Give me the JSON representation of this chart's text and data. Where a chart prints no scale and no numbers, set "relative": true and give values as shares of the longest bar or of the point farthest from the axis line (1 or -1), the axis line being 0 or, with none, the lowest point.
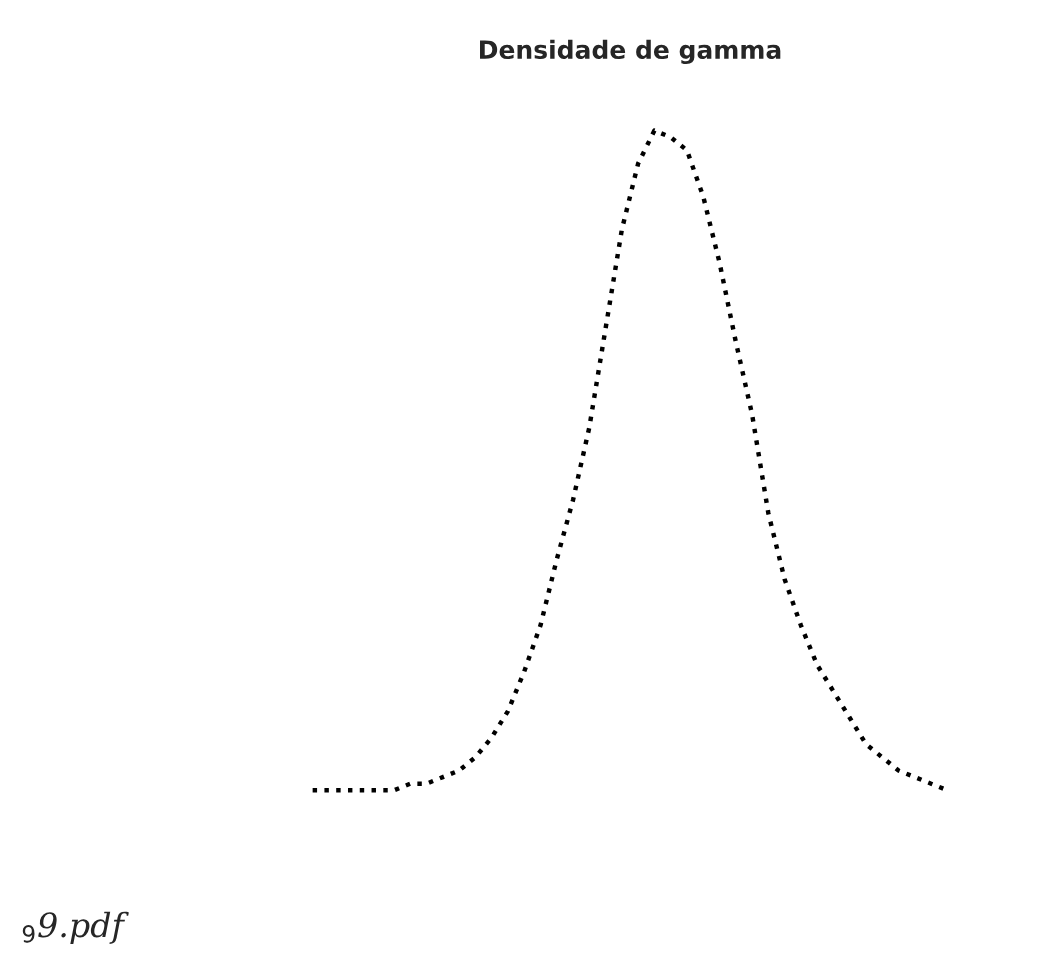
{
  "chart_data": {
    "type": "line",
    "title": "Densidade de gamma",
    "relative": true,
    "line_style": "dotted",
    "marker": "none",
    "grid": false,
    "categories": [
      null,
      null,
      null,
      null,
      null,
      null,
      null,
      null,
      null,
      null,
      null,
      null,
      null,
      null,
      null,
      null,
      null,
      null,
      null,
      null,
      null,
      null,
      null,
      null,
      null,
      null,
      null,
      null,
      null,
      null,
      null,
      null,
      null,
      null,
      null,
      null,
      null,
      null,
      null,
      null
    ],
    "series": [
      {
        "color": "#000000",
        "values": [
          0,
          0,
          0,
          0,
          0,
          0,
          0.01,
          0.01,
          0.02,
          0.03,
          0.05,
          0.08,
          0.12,
          0.18,
          0.25,
          0.35,
          0.44,
          0.55,
          0.7,
          0.85,
          0.95,
          1.0,
          0.99,
          0.97,
          0.9,
          0.8,
          0.68,
          0.57,
          0.42,
          0.32,
          0.25,
          0.19,
          0.15,
          0.11,
          0.07,
          0.05,
          0.03,
          0.02,
          0.01,
          0
        ]
      }
    ],
    "annotations": [
      "$_{9}$9.pdf"
    ]
  }
}
